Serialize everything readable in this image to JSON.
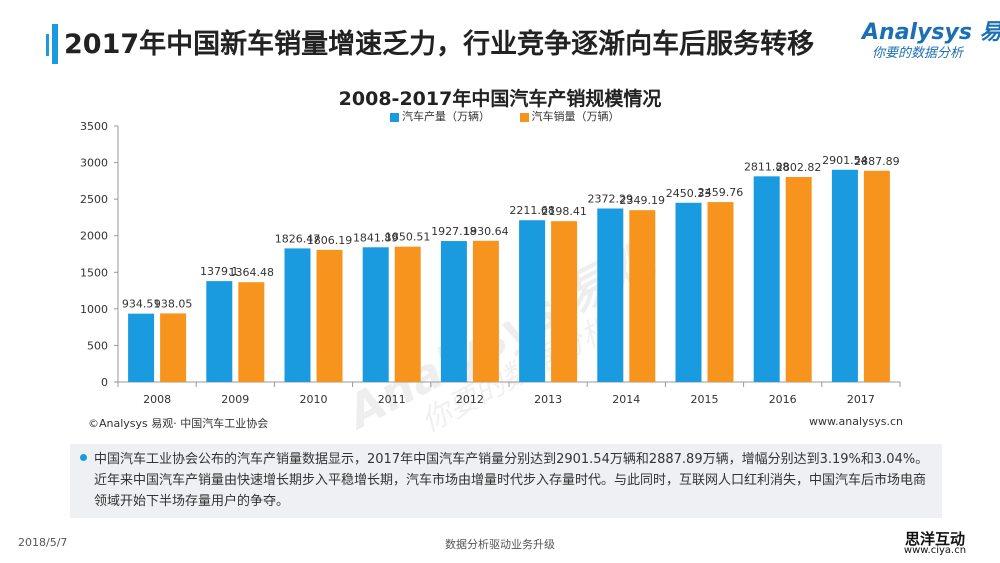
{
  "page_title": "2017年中国新车销量增速乏力，行业竞争逐渐向车后服务转移",
  "logo": {
    "main": "Analysys 易观",
    "sub": "你要的数据分析"
  },
  "watermark": {
    "main": "Analysys 易观",
    "sub": "你要的数据分析"
  },
  "colors": {
    "accent": "#1a9be0",
    "production": "#1a9be0",
    "sales": "#f7941d",
    "note_bg": "#eef0f3"
  },
  "chart_data": {
    "type": "bar",
    "title": "2008-2017年中国汽车产销规模情况",
    "categories": [
      "2008",
      "2009",
      "2010",
      "2011",
      "2012",
      "2013",
      "2014",
      "2015",
      "2016",
      "2017"
    ],
    "series": [
      {
        "name": "汽车产量（万辆）",
        "color": "#1a9be0",
        "values": [
          934.51,
          1379.1,
          1826.47,
          1841.89,
          1927.18,
          2211.68,
          2372.29,
          2450.33,
          2811.88,
          2901.54
        ]
      },
      {
        "name": "汽车销量（万辆）",
        "color": "#f7941d",
        "values": [
          938.05,
          1364.48,
          1806.19,
          1850.51,
          1930.64,
          2198.41,
          2349.19,
          2459.76,
          2802.82,
          2887.89
        ]
      }
    ],
    "xlabel": "",
    "ylabel": "",
    "ylim": [
      0,
      3500
    ],
    "yticks": [
      0,
      500,
      1000,
      1500,
      2000,
      2500,
      3000,
      3500
    ],
    "grid": false,
    "legend_position": "top-center"
  },
  "source": "©Analysys 易观· 中国汽车工业协会",
  "website": "www.analysys.cn",
  "note": "中国汽车工业协会公布的汽车产销量数据显示，2017年中国汽车产销量分别达到2901.54万辆和2887.89万辆，增幅分别达到3.19%和3.04%。近年来中国汽车产销量由快速增长期步入平稳增长期，汽车市场由增量时代步入存量时代。与此同时，互联网人口红利消失，中国汽车后市场电商领域开始下半场存量用户的争夺。",
  "footer": {
    "date": "2018/5/7",
    "center": "数据分析驱动业务升级"
  },
  "stamp": {
    "main": "思洋互动",
    "url": "www.ciya.cn"
  }
}
